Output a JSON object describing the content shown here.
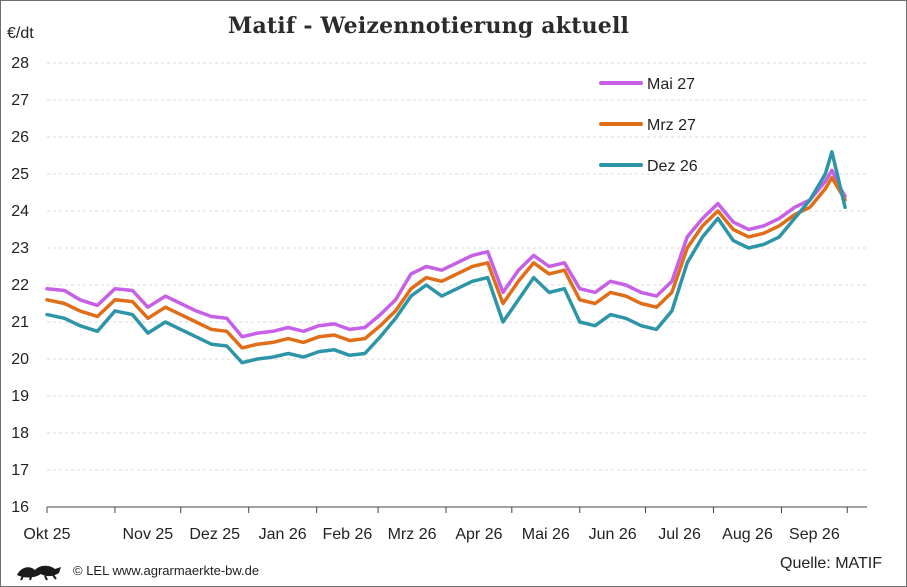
{
  "colors": {
    "series_0": "#c760e6",
    "series_1": "#e06e18",
    "series_2": "#2e95a8",
    "grid": "#d9d9d9",
    "axis": "#444444"
  },
  "footer": {
    "copyright": "© LEL www.agrarmaerkte-bw.de",
    "source": "Quelle: MATIF",
    "logo_icon": "baden-wuerttemberg-lion-logo"
  },
  "chart_data": {
    "type": "line",
    "title": "Matif - Weizennotierung aktuell",
    "ylabel": "€/dt",
    "xlabel": "",
    "ylim": [
      16,
      28
    ],
    "yticks": [
      16,
      17,
      18,
      19,
      20,
      21,
      22,
      23,
      24,
      25,
      26,
      27,
      28
    ],
    "x_tick_labels": [
      "Okt 25",
      "Nov 25",
      "Dez 25",
      "Jan 26",
      "Feb 26",
      "Mrz 26",
      "Apr 26",
      "Mai 26",
      "Jun 26",
      "Jul 26",
      "Aug 26",
      "Sep 26"
    ],
    "grid": "horizontal, dashed",
    "legend_position": "top-right",
    "x": [
      "2025-10-01",
      "2025-10-09",
      "2025-10-16",
      "2025-10-24",
      "2025-11-01",
      "2025-11-09",
      "2025-11-16",
      "2025-11-24",
      "2025-12-01",
      "2025-12-08",
      "2025-12-15",
      "2025-12-22",
      "2025-12-29",
      "2026-01-05",
      "2026-01-12",
      "2026-01-19",
      "2026-01-26",
      "2026-02-02",
      "2026-02-09",
      "2026-02-16",
      "2026-02-23",
      "2026-03-02",
      "2026-03-09",
      "2026-03-16",
      "2026-03-23",
      "2026-03-30",
      "2026-04-06",
      "2026-04-13",
      "2026-04-20",
      "2026-04-27",
      "2026-05-04",
      "2026-05-11",
      "2026-05-18",
      "2026-05-25",
      "2026-06-01",
      "2026-06-08",
      "2026-06-15",
      "2026-06-22",
      "2026-06-29",
      "2026-07-06",
      "2026-07-13",
      "2026-07-20",
      "2026-07-27",
      "2026-08-03",
      "2026-08-10",
      "2026-08-17",
      "2026-08-24",
      "2026-08-31",
      "2026-09-07",
      "2026-09-14",
      "2026-09-21",
      "2026-09-24",
      "2026-09-28",
      "2026-09-30"
    ],
    "series": [
      {
        "name": "Mai 27",
        "values": [
          21.9,
          21.85,
          21.6,
          21.45,
          21.9,
          21.85,
          21.4,
          21.7,
          21.5,
          21.3,
          21.15,
          21.1,
          20.6,
          20.7,
          20.75,
          20.85,
          20.75,
          20.9,
          20.95,
          20.8,
          20.85,
          21.2,
          21.6,
          22.3,
          22.5,
          22.4,
          22.6,
          22.8,
          22.9,
          21.8,
          22.4,
          22.8,
          22.5,
          22.6,
          21.9,
          21.8,
          22.1,
          22.0,
          21.8,
          21.7,
          22.1,
          23.3,
          23.8,
          24.2,
          23.7,
          23.5,
          23.6,
          23.8,
          24.1,
          24.3,
          24.8,
          25.1,
          24.6,
          24.4
        ]
      },
      {
        "name": "Mrz 27",
        "values": [
          21.6,
          21.5,
          21.3,
          21.15,
          21.6,
          21.55,
          21.1,
          21.4,
          21.2,
          21.0,
          20.8,
          20.75,
          20.3,
          20.4,
          20.45,
          20.55,
          20.45,
          20.6,
          20.65,
          20.5,
          20.55,
          20.9,
          21.3,
          21.9,
          22.2,
          22.1,
          22.3,
          22.5,
          22.6,
          21.5,
          22.1,
          22.6,
          22.3,
          22.4,
          21.6,
          21.5,
          21.8,
          21.7,
          21.5,
          21.4,
          21.8,
          23.0,
          23.6,
          24.0,
          23.5,
          23.3,
          23.4,
          23.6,
          23.9,
          24.1,
          24.6,
          24.9,
          24.5,
          24.3
        ]
      },
      {
        "name": "Dez 26",
        "values": [
          21.2,
          21.1,
          20.9,
          20.75,
          21.3,
          21.2,
          20.7,
          21.0,
          20.8,
          20.6,
          20.4,
          20.35,
          19.9,
          20.0,
          20.05,
          20.15,
          20.05,
          20.2,
          20.25,
          20.1,
          20.15,
          20.6,
          21.1,
          21.7,
          22.0,
          21.7,
          21.9,
          22.1,
          22.2,
          21.0,
          21.6,
          22.2,
          21.8,
          21.9,
          21.0,
          20.9,
          21.2,
          21.1,
          20.9,
          20.8,
          21.3,
          22.6,
          23.3,
          23.8,
          23.2,
          23.0,
          23.1,
          23.3,
          23.8,
          24.3,
          25.0,
          25.6,
          24.6,
          24.1
        ]
      }
    ]
  }
}
